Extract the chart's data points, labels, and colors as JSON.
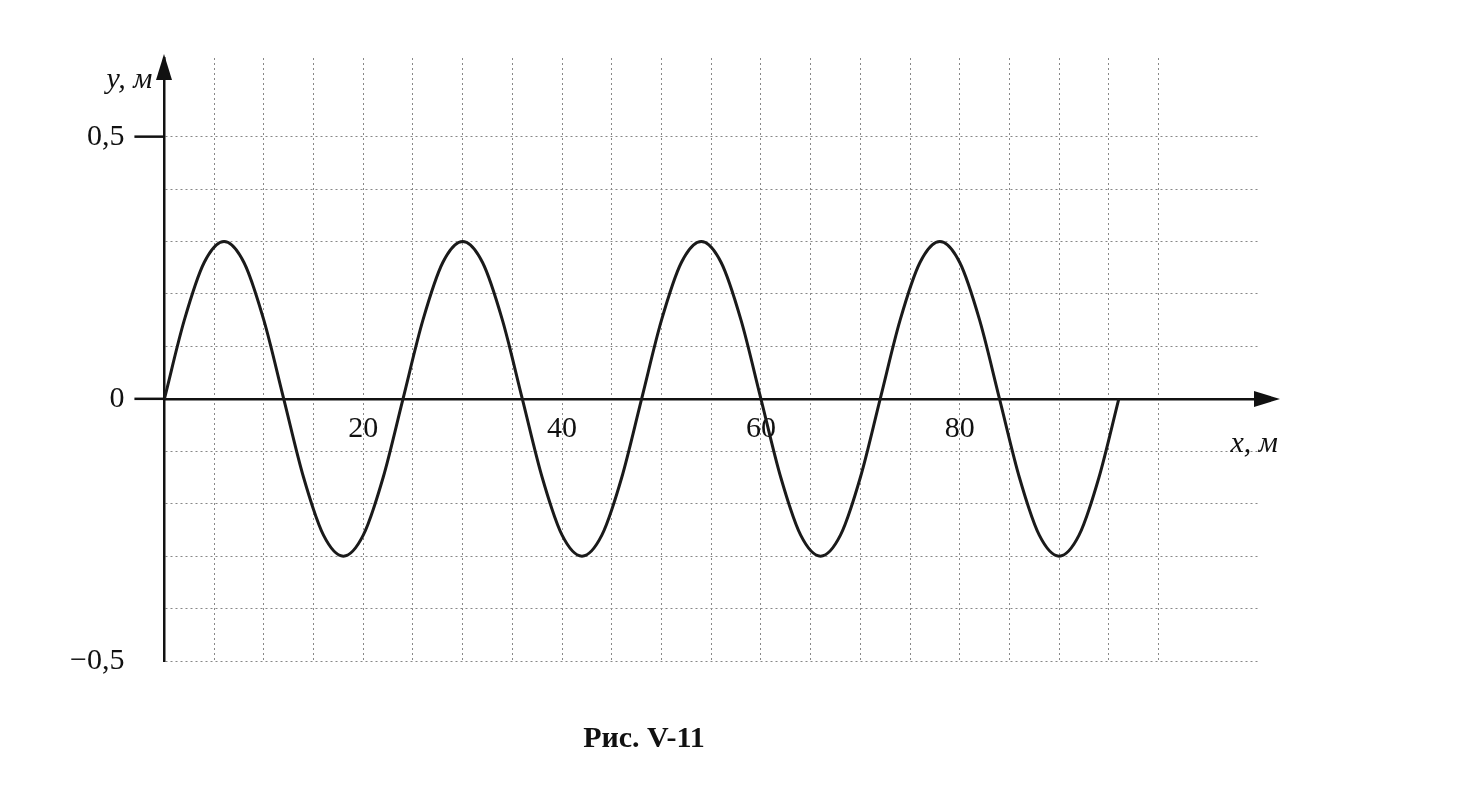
{
  "chart_data": {
    "type": "line",
    "title": "Рис. V-11",
    "xlabel": "x, м",
    "ylabel": "y, м",
    "x": [
      0,
      2,
      4,
      6,
      8,
      10,
      12,
      14,
      16,
      18,
      20,
      22,
      24,
      26,
      28,
      30,
      32,
      34,
      36,
      38,
      40,
      42,
      44,
      46,
      48,
      50,
      52,
      54,
      56,
      58,
      60,
      62,
      64,
      66,
      68,
      70,
      72,
      74,
      76,
      78,
      80,
      82,
      84,
      86,
      88,
      90,
      92,
      94,
      96
    ],
    "series": [
      {
        "color": "#1a1a1a",
        "values": [
          0,
          0.15,
          0.26,
          0.3,
          0.26,
          0.15,
          0,
          -0.15,
          -0.26,
          -0.3,
          -0.26,
          -0.15,
          0,
          0.15,
          0.26,
          0.3,
          0.26,
          0.15,
          0,
          -0.15,
          -0.26,
          -0.3,
          -0.26,
          -0.15,
          0,
          0.15,
          0.26,
          0.3,
          0.26,
          0.15,
          0,
          -0.15,
          -0.26,
          -0.3,
          -0.26,
          -0.15,
          0,
          0.15,
          0.26,
          0.3,
          0.26,
          0.15,
          0,
          -0.15,
          -0.26,
          -0.3,
          -0.26,
          -0.15,
          0
        ]
      }
    ],
    "xlim": [
      0,
      110
    ],
    "xticks": [
      {
        "value": 0,
        "label": null
      },
      {
        "value": 5,
        "label": null
      },
      {
        "value": 10,
        "label": null
      },
      {
        "value": 15,
        "label": null
      },
      20,
      {
        "value": 25,
        "label": null
      },
      {
        "value": 30,
        "label": null
      },
      {
        "value": 35,
        "label": null
      },
      40,
      {
        "value": 45,
        "label": null
      },
      {
        "value": 50,
        "label": null
      },
      {
        "value": 55,
        "label": null
      },
      60,
      {
        "value": 65,
        "label": null
      },
      {
        "value": 70,
        "label": null
      },
      {
        "value": 75,
        "label": null
      },
      80,
      {
        "value": 85,
        "label": null
      },
      {
        "value": 90,
        "label": null
      },
      {
        "value": 95,
        "label": null
      },
      {
        "value": 100,
        "label": null
      }
    ],
    "ylim": [
      -0.5,
      0.65
    ],
    "yticks": [
      {
        "value": -0.5,
        "label": "−0,5"
      },
      {
        "value": -0.4,
        "label": null
      },
      {
        "value": -0.3,
        "label": null
      },
      {
        "value": -0.2,
        "label": null
      },
      {
        "value": -0.1,
        "label": null
      },
      0,
      {
        "value": 0.1,
        "label": null
      },
      {
        "value": 0.2,
        "label": null
      },
      {
        "value": 0.3,
        "label": null
      },
      {
        "value": 0.4,
        "label": null
      },
      {
        "value": 0.5,
        "label": "0,5"
      }
    ],
    "grid": true,
    "marker": "none"
  }
}
